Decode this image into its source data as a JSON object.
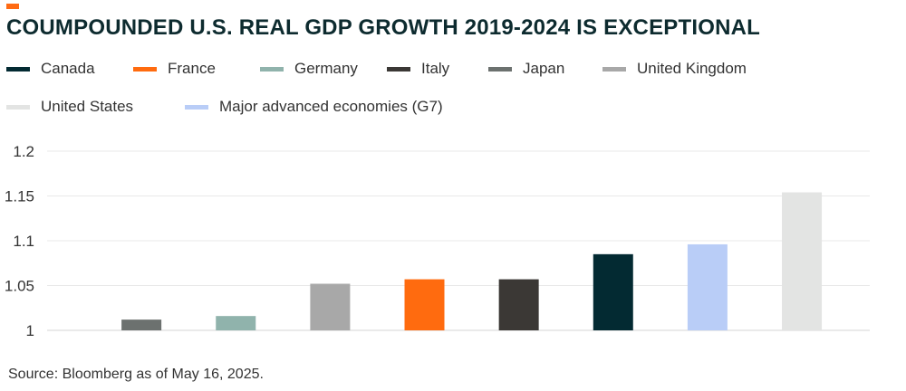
{
  "header": {
    "accent_color": "#ff6a13",
    "title": "COUMPOUNDED U.S. REAL GDP GROWTH 2019-2024 IS EXCEPTIONAL"
  },
  "legend": [
    {
      "label": "Canada",
      "color": "#032a32"
    },
    {
      "label": "France",
      "color": "#ff6b0f"
    },
    {
      "label": "Germany",
      "color": "#90b3ac"
    },
    {
      "label": "Italy",
      "color": "#3b3835"
    },
    {
      "label": "Japan",
      "color": "#6c716f"
    },
    {
      "label": "United Kingdom",
      "color": "#a8a8a8"
    },
    {
      "label": "United States",
      "color": "#e3e4e3"
    },
    {
      "label": "Major advanced economies (G7)",
      "color": "#b9cdf7"
    }
  ],
  "source": "Source: Bloomberg as of May 16, 2025.",
  "chart_data": {
    "type": "bar",
    "title": "COUMPOUNDED U.S. REAL GDP GROWTH 2019-2024 IS EXCEPTIONAL",
    "categories": [
      "Japan",
      "Germany",
      "United Kingdom",
      "France",
      "Italy",
      "Canada",
      "Major advanced economies (G7)",
      "United States"
    ],
    "values": [
      1.012,
      1.016,
      1.052,
      1.057,
      1.057,
      1.085,
      1.096,
      1.154
    ],
    "colors": [
      "#6c716f",
      "#90b3ac",
      "#a8a8a8",
      "#ff6b0f",
      "#3b3835",
      "#032a32",
      "#b9cdf7",
      "#e3e4e3"
    ],
    "ylim": [
      1,
      1.2
    ],
    "yticks": [
      1,
      1.05,
      1.1,
      1.15,
      1.2
    ],
    "ytick_labels": [
      "1",
      "1.05",
      "1.1",
      "1.15",
      "1.2"
    ],
    "grid": true,
    "legend_position": "top"
  }
}
